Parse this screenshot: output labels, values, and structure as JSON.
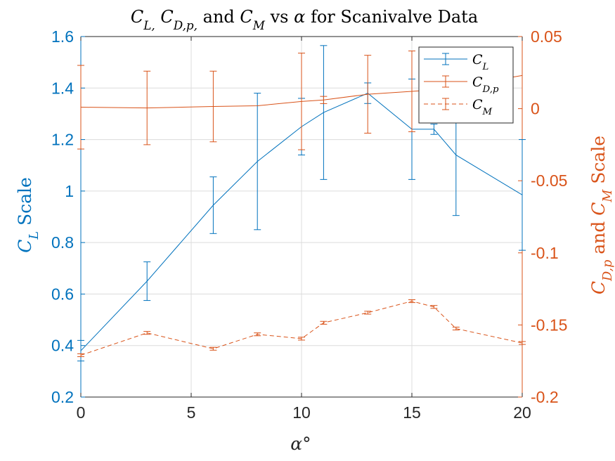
{
  "chart_data": {
    "type": "line",
    "title": "C_L, C_D,p, and C_M vs α for Scanivalve Data",
    "xlabel": "α°",
    "ylabel_left": "C_L Scale",
    "ylabel_right": "C_D,p and C_M Scale",
    "xlim": [
      0,
      20
    ],
    "ylim_left": [
      0.2,
      1.6
    ],
    "ylim_right": [
      -0.2,
      0.05
    ],
    "xticks": [
      "0",
      "5",
      "10",
      "15",
      "20"
    ],
    "yticks_left": [
      "0.2",
      "0.4",
      "0.6",
      "0.8",
      "1",
      "1.2",
      "1.4",
      "1.6"
    ],
    "yticks_right": [
      "-0.2",
      "-0.15",
      "-0.1",
      "-0.05",
      "0",
      "0.05"
    ],
    "grid": true,
    "legend_position": "top-right",
    "colors": {
      "left": "#0072BD",
      "right": "#D95319"
    },
    "series": [
      {
        "name": "C_L",
        "axis": "left",
        "style": "solid",
        "x": [
          0,
          3,
          6,
          8,
          10,
          11,
          13,
          15,
          16,
          17,
          20
        ],
        "y": [
          0.38,
          0.65,
          0.945,
          1.115,
          1.25,
          1.305,
          1.38,
          1.24,
          1.24,
          1.14,
          0.985
        ],
        "err": [
          0.04,
          0.075,
          0.11,
          0.265,
          0.11,
          0.26,
          0.04,
          0.195,
          0.02,
          0.235,
          0.215
        ]
      },
      {
        "name": "C_D,p",
        "axis": "right",
        "style": "solid",
        "x": [
          0,
          3,
          6,
          8,
          10,
          11,
          13,
          15,
          16,
          17,
          20
        ],
        "y": [
          0.001,
          0.0005,
          0.0015,
          0.002,
          0.005,
          0.006,
          0.01,
          0.012,
          0.013,
          0.015,
          0.023
        ],
        "err": [
          0.029,
          0.0255,
          0.0245,
          0.0,
          0.0335,
          0.0025,
          0.027,
          0.028,
          0.0,
          0.0,
          0.0
        ]
      },
      {
        "name": "C_M",
        "axis": "right",
        "style": "dashed",
        "x": [
          0,
          3,
          6,
          8,
          10,
          11,
          13,
          15,
          16,
          17,
          20
        ],
        "y": [
          -0.171,
          -0.1555,
          -0.1665,
          -0.1565,
          -0.1595,
          -0.1485,
          -0.1415,
          -0.1335,
          -0.1375,
          -0.1525,
          -0.1625
        ],
        "err": [
          0.001,
          0.001,
          0.001,
          0.001,
          0.001,
          0.001,
          0.001,
          0.001,
          0.001,
          0.001,
          0.001
        ]
      }
    ]
  }
}
